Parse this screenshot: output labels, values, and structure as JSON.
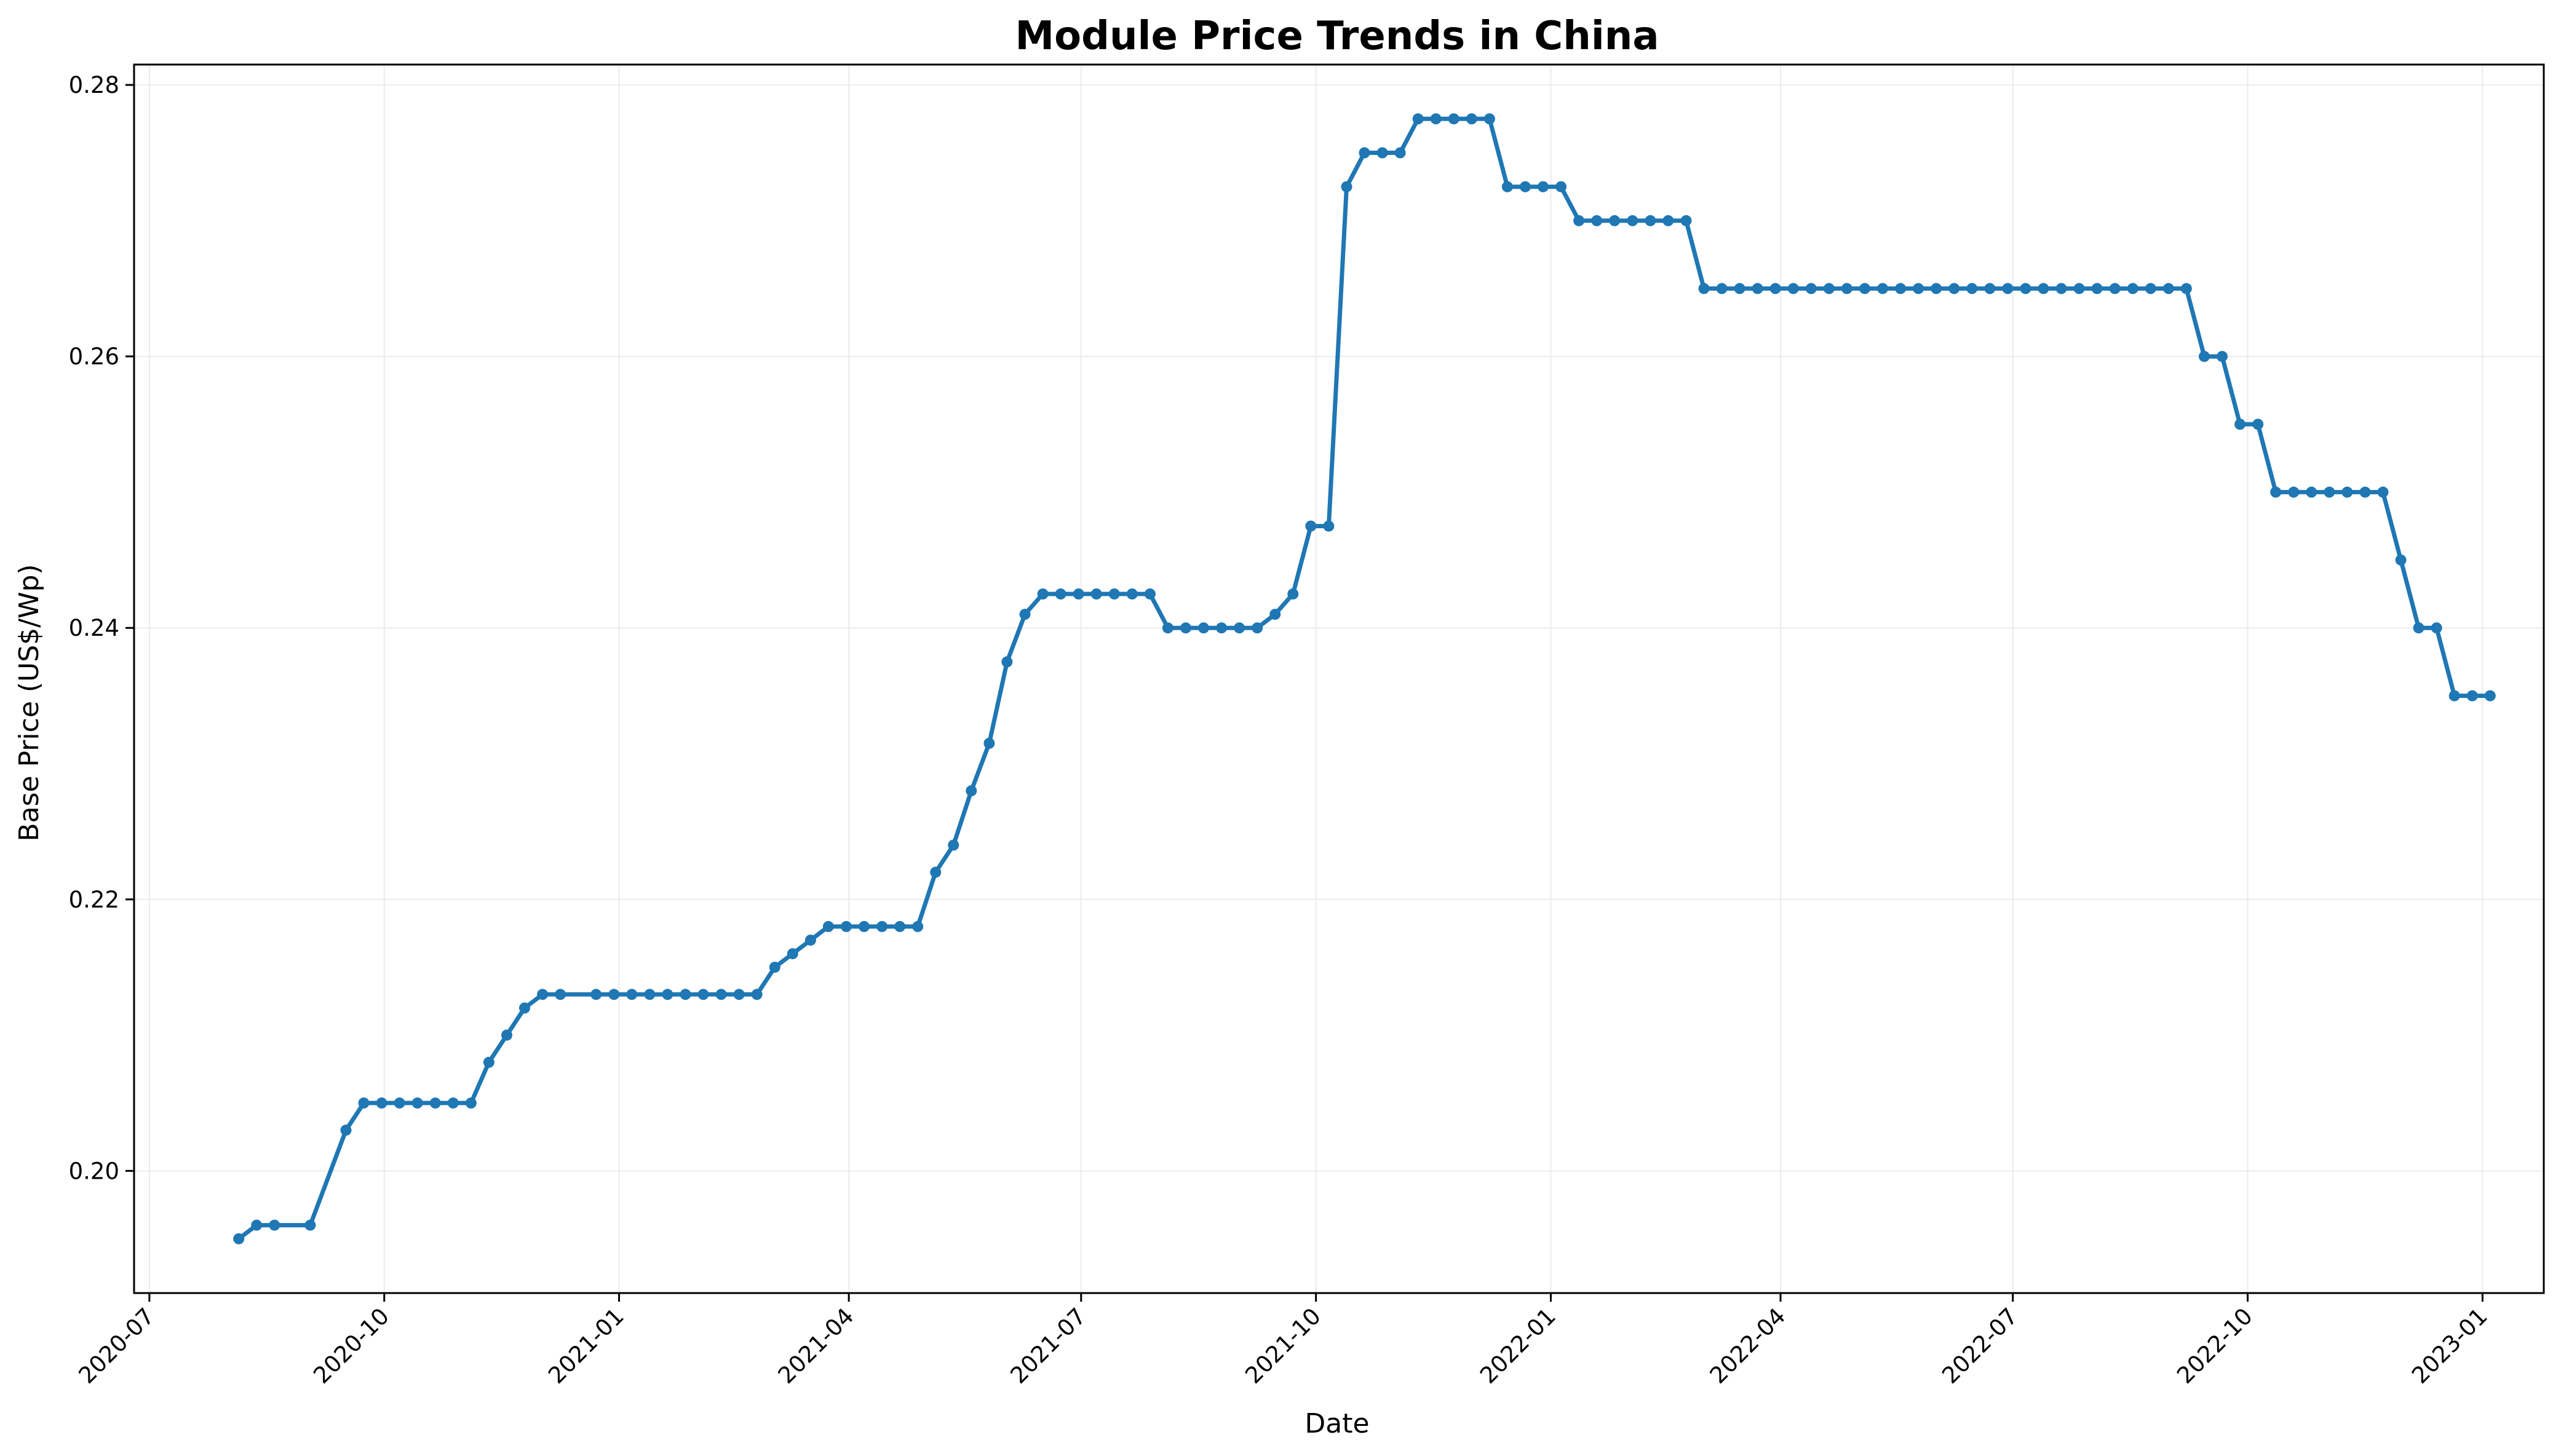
{
  "chart_data": {
    "type": "line",
    "title": "Module Price Trends in China",
    "xlabel": "Date",
    "ylabel": "Base Price (US$/Wp)",
    "x_axis_type": "date",
    "xlim": [
      "2020-06-25",
      "2023-01-25"
    ],
    "ylim": [
      0.191,
      0.2815
    ],
    "x_ticks": [
      "2020-07",
      "2020-10",
      "2021-01",
      "2021-04",
      "2021-07",
      "2021-10",
      "2022-01",
      "2022-04",
      "2022-07",
      "2022-10",
      "2023-01"
    ],
    "x_tick_dates": [
      "2020-07-01",
      "2020-10-01",
      "2021-01-01",
      "2021-04-01",
      "2021-07-01",
      "2021-10-01",
      "2022-01-01",
      "2022-04-01",
      "2022-07-01",
      "2022-10-01",
      "2023-01-01"
    ],
    "y_ticks": [
      0.2,
      0.22,
      0.24,
      0.26,
      0.28
    ],
    "y_tick_labels": [
      "0.20",
      "0.22",
      "0.24",
      "0.26",
      "0.28"
    ],
    "grid": true,
    "legend": "none",
    "colors": {
      "series": "#1f77b4",
      "grid": "#ebebeb",
      "axis": "#000000"
    },
    "series": [
      {
        "x": [
          "2020-08-05",
          "2020-08-12",
          "2020-08-19",
          "2020-09-02",
          "2020-09-16",
          "2020-09-23",
          "2020-09-30",
          "2020-10-07",
          "2020-10-14",
          "2020-10-21",
          "2020-10-28",
          "2020-11-04",
          "2020-11-11",
          "2020-11-18",
          "2020-11-25",
          "2020-12-02",
          "2020-12-09",
          "2020-12-23",
          "2020-12-30",
          "2021-01-06",
          "2021-01-13",
          "2021-01-20",
          "2021-01-27",
          "2021-02-03",
          "2021-02-10",
          "2021-02-17",
          "2021-02-24",
          "2021-03-03",
          "2021-03-10",
          "2021-03-17",
          "2021-03-24",
          "2021-03-31",
          "2021-04-07",
          "2021-04-14",
          "2021-04-21",
          "2021-04-28",
          "2021-05-05",
          "2021-05-12",
          "2021-05-19",
          "2021-05-26",
          "2021-06-02",
          "2021-06-09",
          "2021-06-16",
          "2021-06-23",
          "2021-06-30",
          "2021-07-07",
          "2021-07-14",
          "2021-07-21",
          "2021-07-28",
          "2021-08-04",
          "2021-08-11",
          "2021-08-18",
          "2021-08-25",
          "2021-09-01",
          "2021-09-08",
          "2021-09-15",
          "2021-09-22",
          "2021-09-29",
          "2021-10-06",
          "2021-10-13",
          "2021-10-20",
          "2021-10-27",
          "2021-11-03",
          "2021-11-10",
          "2021-11-17",
          "2021-11-24",
          "2021-12-01",
          "2021-12-08",
          "2021-12-15",
          "2021-12-22",
          "2021-12-29",
          "2022-01-05",
          "2022-01-12",
          "2022-01-19",
          "2022-01-26",
          "2022-02-02",
          "2022-02-09",
          "2022-02-16",
          "2022-02-23",
          "2022-03-02",
          "2022-03-09",
          "2022-03-16",
          "2022-03-23",
          "2022-03-30",
          "2022-04-06",
          "2022-04-13",
          "2022-04-20",
          "2022-04-27",
          "2022-05-04",
          "2022-05-11",
          "2022-05-18",
          "2022-05-25",
          "2022-06-01",
          "2022-06-08",
          "2022-06-15",
          "2022-06-22",
          "2022-06-29",
          "2022-07-06",
          "2022-07-13",
          "2022-07-20",
          "2022-07-27",
          "2022-08-03",
          "2022-08-10",
          "2022-08-17",
          "2022-08-24",
          "2022-08-31",
          "2022-09-07",
          "2022-09-14",
          "2022-09-21",
          "2022-09-28",
          "2022-10-05",
          "2022-10-12",
          "2022-10-19",
          "2022-10-26",
          "2022-11-02",
          "2022-11-09",
          "2022-11-16",
          "2022-11-23",
          "2022-11-30",
          "2022-12-07",
          "2022-12-14",
          "2022-12-21",
          "2022-12-28",
          "2023-01-04"
        ],
        "y": [
          0.195,
          0.196,
          0.196,
          0.196,
          0.203,
          0.205,
          0.205,
          0.205,
          0.205,
          0.205,
          0.205,
          0.205,
          0.208,
          0.21,
          0.212,
          0.213,
          0.213,
          0.213,
          0.213,
          0.213,
          0.213,
          0.213,
          0.213,
          0.213,
          0.213,
          0.213,
          0.213,
          0.215,
          0.216,
          0.217,
          0.218,
          0.218,
          0.218,
          0.218,
          0.218,
          0.218,
          0.222,
          0.224,
          0.228,
          0.2315,
          0.2375,
          0.241,
          0.2425,
          0.2425,
          0.2425,
          0.2425,
          0.2425,
          0.2425,
          0.2425,
          0.24,
          0.24,
          0.24,
          0.24,
          0.24,
          0.24,
          0.241,
          0.2425,
          0.2475,
          0.2475,
          0.2725,
          0.275,
          0.275,
          0.275,
          0.2775,
          0.2775,
          0.2775,
          0.2775,
          0.2775,
          0.2725,
          0.2725,
          0.2725,
          0.2725,
          0.27,
          0.27,
          0.27,
          0.27,
          0.27,
          0.27,
          0.27,
          0.265,
          0.265,
          0.265,
          0.265,
          0.265,
          0.265,
          0.265,
          0.265,
          0.265,
          0.265,
          0.265,
          0.265,
          0.265,
          0.265,
          0.265,
          0.265,
          0.265,
          0.265,
          0.265,
          0.265,
          0.265,
          0.265,
          0.265,
          0.265,
          0.265,
          0.265,
          0.265,
          0.265,
          0.26,
          0.26,
          0.255,
          0.255,
          0.25,
          0.25,
          0.25,
          0.25,
          0.25,
          0.25,
          0.25,
          0.245,
          0.24,
          0.24,
          0.235,
          0.235,
          0.235
        ]
      }
    ]
  }
}
